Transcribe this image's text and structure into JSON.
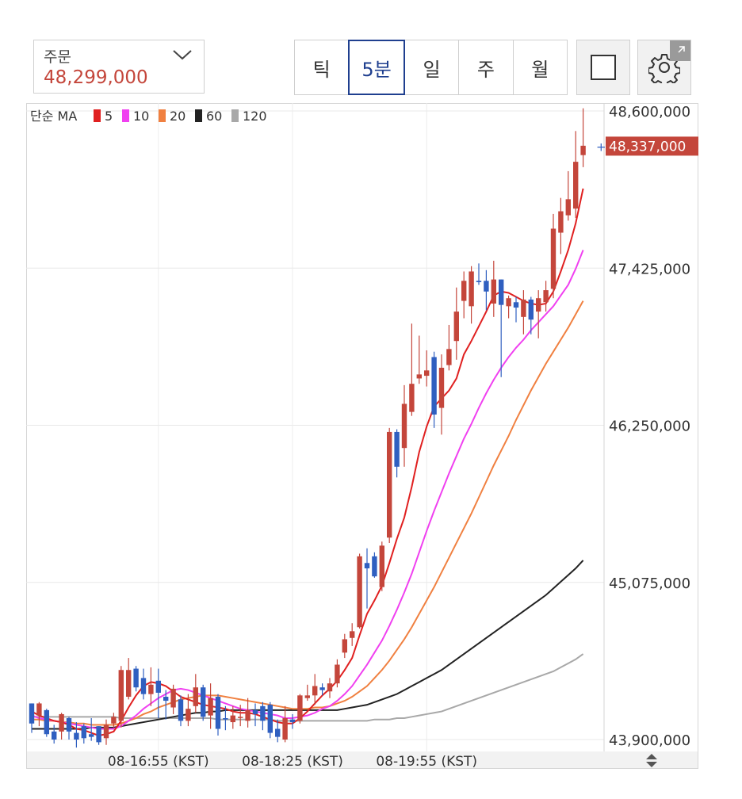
{
  "order": {
    "label": "주문",
    "price": "48,299,000"
  },
  "timeframes": [
    {
      "label": "틱",
      "active": false
    },
    {
      "label": "5분",
      "active": true
    },
    {
      "label": "일",
      "active": false
    },
    {
      "label": "주",
      "active": false
    },
    {
      "label": "월",
      "active": false
    }
  ],
  "toolbar": {
    "square_icon": "square-icon",
    "settings_icon": "gear-icon"
  },
  "chart_data": {
    "type": "candlestick",
    "ma_label": "단순 MA",
    "ma_periods": [
      {
        "period": "5",
        "color": "#e02020"
      },
      {
        "period": "10",
        "color": "#f040f0"
      },
      {
        "period": "20",
        "color": "#f08040"
      },
      {
        "period": "60",
        "color": "#222222"
      },
      {
        "period": "120",
        "color": "#a8a8a8"
      }
    ],
    "y_ticks": [
      "48,600,000",
      "47,425,000",
      "46,250,000",
      "45,075,000",
      "43,900,000"
    ],
    "y_tick_values": [
      48600000,
      47425000,
      46250000,
      45075000,
      43900000
    ],
    "ylim": [
      43900000,
      48600000
    ],
    "current_price_label": "48,337,000",
    "current_price": 48337000,
    "x_ticks": [
      "08-16:55 (KST)",
      "08-18:25 (KST)",
      "08-19:55 (KST)"
    ],
    "x_tick_index": [
      17,
      35,
      53
    ],
    "candles": [
      [
        44170,
        44020,
        44170,
        43950
      ],
      [
        44080,
        44170,
        44180,
        44000
      ],
      [
        44120,
        43940,
        44130,
        43920
      ],
      [
        43960,
        43900,
        44010,
        43870
      ],
      [
        43960,
        44090,
        44100,
        43900
      ],
      [
        44060,
        43960,
        44070,
        43900
      ],
      [
        43950,
        43900,
        44030,
        43840
      ],
      [
        44000,
        43910,
        44020,
        43870
      ],
      [
        43940,
        43920,
        44060,
        43890
      ],
      [
        44000,
        43880,
        44000,
        43860
      ],
      [
        43910,
        44010,
        44050,
        43860
      ],
      [
        44020,
        44070,
        44100,
        43990
      ],
      [
        44040,
        44420,
        44450,
        43990
      ],
      [
        44220,
        44420,
        44510,
        44200
      ],
      [
        44430,
        44290,
        44450,
        44260
      ],
      [
        44360,
        44240,
        44430,
        44200
      ],
      [
        44240,
        44310,
        44440,
        44150
      ],
      [
        44340,
        44250,
        44430,
        44060
      ],
      [
        44220,
        44190,
        44270,
        44050
      ],
      [
        44140,
        44280,
        44310,
        44090
      ],
      [
        44200,
        44040,
        44230,
        44000
      ],
      [
        44040,
        44130,
        44240,
        44000
      ],
      [
        44150,
        44290,
        44390,
        44100
      ],
      [
        44290,
        44070,
        44310,
        44040
      ],
      [
        44080,
        44210,
        44320,
        43980
      ],
      [
        44220,
        43980,
        44240,
        43930
      ],
      [
        44060,
        44050,
        44150,
        43970
      ],
      [
        44030,
        44080,
        44150,
        43980
      ],
      [
        44070,
        44070,
        44160,
        44000
      ],
      [
        44040,
        44120,
        44210,
        43990
      ],
      [
        44120,
        44090,
        44170,
        44000
      ],
      [
        44150,
        44040,
        44180,
        43970
      ],
      [
        44160,
        43950,
        44180,
        43910
      ],
      [
        43980,
        43920,
        44050,
        43880
      ],
      [
        43900,
        44060,
        44150,
        43880
      ],
      [
        44050,
        44030,
        44090,
        43980
      ],
      [
        44040,
        44230,
        44240,
        44020
      ],
      [
        44210,
        44230,
        44310,
        44190
      ],
      [
        44230,
        44300,
        44390,
        44160
      ],
      [
        44290,
        44270,
        44320,
        44230
      ],
      [
        44260,
        44320,
        44360,
        44210
      ],
      [
        44320,
        44460,
        44500,
        44290
      ],
      [
        44550,
        44650,
        44690,
        44510
      ],
      [
        44660,
        44710,
        44770,
        44600
      ],
      [
        44740,
        45270,
        45290,
        44730
      ],
      [
        45220,
        45180,
        45330,
        44880
      ],
      [
        45270,
        45120,
        45300,
        45110
      ],
      [
        45040,
        45350,
        45380,
        45010
      ],
      [
        45410,
        46200,
        46230,
        45370
      ],
      [
        46200,
        45940,
        46220,
        45860
      ],
      [
        46080,
        46410,
        46550,
        45940
      ],
      [
        46350,
        46560,
        47010,
        46320
      ],
      [
        46600,
        46630,
        46920,
        46560
      ],
      [
        46620,
        46660,
        46810,
        46540
      ],
      [
        46760,
        46330,
        46800,
        46230
      ],
      [
        46380,
        46680,
        46780,
        46180
      ],
      [
        46700,
        46820,
        47000,
        46660
      ],
      [
        46880,
        47100,
        47280,
        46740
      ],
      [
        47180,
        47330,
        47400,
        47050
      ],
      [
        47140,
        47400,
        47440,
        47010
      ],
      [
        47330,
        47320,
        47460,
        47300
      ],
      [
        47330,
        47250,
        47410,
        47110
      ],
      [
        47160,
        47340,
        47480,
        47060
      ],
      [
        47340,
        47150,
        47340,
        46610
      ],
      [
        47140,
        47200,
        47220,
        47050
      ],
      [
        47170,
        47130,
        47210,
        47020
      ],
      [
        47060,
        47190,
        47260,
        46930
      ],
      [
        47190,
        47040,
        47210,
        46930
      ],
      [
        47100,
        47200,
        47260,
        46900
      ],
      [
        47170,
        47260,
        47330,
        47100
      ],
      [
        47270,
        47720,
        47830,
        47200
      ],
      [
        47690,
        47850,
        47950,
        47530
      ],
      [
        47820,
        47940,
        48150,
        47780
      ],
      [
        47870,
        48220,
        48450,
        47800
      ],
      [
        48270,
        48340,
        48620,
        48180
      ]
    ],
    "ma5": [
      44110,
      44080,
      44060,
      44040,
      44030,
      44010,
      43980,
      43970,
      43950,
      43930,
      43940,
      43960,
      44040,
      44140,
      44230,
      44300,
      44330,
      44320,
      44300,
      44260,
      44220,
      44200,
      44180,
      44160,
      44150,
      44140,
      44130,
      44110,
      44100,
      44100,
      44090,
      44070,
      44050,
      44030,
      44020,
      44020,
      44060,
      44110,
      44170,
      44230,
      44280,
      44340,
      44420,
      44510,
      44680,
      44840,
      44940,
      45050,
      45220,
      45400,
      45560,
      45790,
      46050,
      46240,
      46390,
      46450,
      46510,
      46600,
      46780,
      46880,
      46990,
      47100,
      47220,
      47250,
      47240,
      47210,
      47180,
      47160,
      47150,
      47160,
      47250,
      47400,
      47560,
      47760,
      48020
    ],
    "ma10": [
      44080,
      44060,
      44050,
      44040,
      44030,
      44020,
      44010,
      44000,
      43990,
      43980,
      43980,
      43980,
      44000,
      44040,
      44080,
      44130,
      44170,
      44210,
      44240,
      44270,
      44280,
      44270,
      44250,
      44230,
      44210,
      44190,
      44170,
      44150,
      44130,
      44120,
      44110,
      44100,
      44090,
      44080,
      44060,
      44060,
      44070,
      44080,
      44100,
      44130,
      44150,
      44190,
      44240,
      44300,
      44380,
      44460,
      44550,
      44640,
      44750,
      44870,
      45000,
      45140,
      45300,
      45460,
      45610,
      45750,
      45890,
      46020,
      46150,
      46260,
      46380,
      46490,
      46590,
      46680,
      46760,
      46830,
      46890,
      46960,
      47020,
      47080,
      47140,
      47220,
      47300,
      47420,
      47560
    ],
    "ma20": [
      44050,
      44050,
      44040,
      44040,
      44030,
      44030,
      44020,
      44020,
      44010,
      44010,
      44010,
      44010,
      44020,
      44040,
      44060,
      44090,
      44110,
      44140,
      44160,
      44180,
      44200,
      44210,
      44220,
      44230,
      44230,
      44230,
      44220,
      44210,
      44200,
      44190,
      44180,
      44170,
      44160,
      44150,
      44140,
      44130,
      44130,
      44130,
      44140,
      44140,
      44150,
      44170,
      44190,
      44220,
      44260,
      44300,
      44360,
      44420,
      44490,
      44570,
      44650,
      44740,
      44840,
      44940,
      45040,
      45150,
      45260,
      45370,
      45480,
      45590,
      45710,
      45830,
      45950,
      46060,
      46170,
      46290,
      46400,
      46510,
      46610,
      46710,
      46800,
      46890,
      46980,
      47080,
      47180
    ],
    "ma60": [
      43980,
      43980,
      43980,
      43980,
      43980,
      43980,
      43980,
      43980,
      43990,
      43990,
      43990,
      43990,
      44000,
      44010,
      44020,
      44030,
      44040,
      44050,
      44060,
      44070,
      44080,
      44090,
      44100,
      44100,
      44110,
      44110,
      44120,
      44120,
      44120,
      44120,
      44120,
      44120,
      44120,
      44120,
      44120,
      44120,
      44120,
      44120,
      44120,
      44120,
      44120,
      44120,
      44130,
      44140,
      44150,
      44160,
      44180,
      44200,
      44220,
      44240,
      44270,
      44300,
      44330,
      44360,
      44390,
      44420,
      44460,
      44500,
      44540,
      44580,
      44620,
      44660,
      44700,
      44740,
      44780,
      44820,
      44860,
      44900,
      44940,
      44980,
      45030,
      45080,
      45130,
      45180,
      45240
    ],
    "ma120": [
      44070,
      44070,
      44070,
      44070,
      44070,
      44070,
      44070,
      44070,
      44070,
      44070,
      44070,
      44070,
      44060,
      44060,
      44060,
      44060,
      44060,
      44060,
      44060,
      44060,
      44060,
      44060,
      44060,
      44060,
      44060,
      44050,
      44050,
      44050,
      44050,
      44050,
      44050,
      44050,
      44050,
      44040,
      44040,
      44040,
      44040,
      44040,
      44040,
      44040,
      44040,
      44040,
      44040,
      44040,
      44040,
      44040,
      44050,
      44050,
      44050,
      44060,
      44060,
      44070,
      44080,
      44090,
      44100,
      44110,
      44130,
      44150,
      44170,
      44190,
      44210,
      44230,
      44250,
      44270,
      44290,
      44310,
      44330,
      44350,
      44370,
      44390,
      44410,
      44440,
      44470,
      44500,
      44540
    ]
  }
}
